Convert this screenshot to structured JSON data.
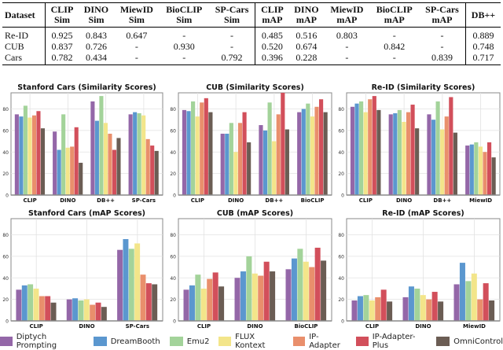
{
  "table": {
    "headers": [
      "Dataset",
      "CLIP Sim",
      "DINO Sim",
      "MiewID Sim",
      "BioCLIP Sim",
      "SP-Cars Sim",
      "CLIP mAP",
      "DINO mAP",
      "MiewID mAP",
      "BioCLIP mAP",
      "SP-Cars mAP",
      "DB++"
    ],
    "rows": [
      [
        "Re-ID",
        "0.925",
        "0.843",
        "0.647",
        "-",
        "-",
        "0.485",
        "0.516",
        "0.803",
        "-",
        "-",
        "0.889"
      ],
      [
        "CUB",
        "0.837",
        "0.726",
        "-",
        "0.930",
        "-",
        "0.520",
        "0.674",
        "-",
        "0.842",
        "-",
        "0.748"
      ],
      [
        "Cars",
        "0.782",
        "0.434",
        "-",
        "-",
        "0.792",
        "0.396",
        "0.228",
        "-",
        "-",
        "0.839",
        "0.717"
      ]
    ]
  },
  "legend": [
    {
      "name": "Diptych Prompting",
      "color": "#9467a8"
    },
    {
      "name": "DreamBooth",
      "color": "#5b97cf"
    },
    {
      "name": "Emu2",
      "color": "#a3d39a"
    },
    {
      "name": "FLUX Kontext",
      "color": "#f3e58a"
    },
    {
      "name": "IP-Adapter",
      "color": "#e98f6c"
    },
    {
      "name": "IP-Adapter-Plus",
      "color": "#d24f5b"
    },
    {
      "name": "OmniControl",
      "color": "#6b5d54"
    }
  ],
  "chart_data": [
    {
      "type": "bar",
      "title": "Stanford Cars (Similarity Scores)",
      "categories": [
        "CLIP",
        "DINO",
        "DB++",
        "SP-Cars"
      ],
      "ylim": [
        0,
        95
      ],
      "yticks": [
        0,
        20,
        40,
        60,
        80
      ],
      "grid": true,
      "values": [
        [
          75,
          73,
          83,
          72,
          74,
          78,
          62
        ],
        [
          59,
          42,
          75,
          44,
          45,
          63,
          30
        ],
        [
          87,
          69,
          92,
          67,
          57,
          42,
          53
        ],
        [
          75,
          77,
          76,
          74,
          52,
          46,
          41
        ]
      ]
    },
    {
      "type": "bar",
      "title": "CUB (Similarity Scores)",
      "categories": [
        "CLIP",
        "DINO",
        "DB++",
        "BioCLIP"
      ],
      "ylim": [
        0,
        95
      ],
      "yticks": [
        0,
        20,
        40,
        60,
        80
      ],
      "grid": true,
      "values": [
        [
          79,
          78,
          87,
          73,
          86,
          90,
          77
        ],
        [
          57,
          57,
          67,
          40,
          67,
          77,
          49
        ],
        [
          65,
          60,
          86,
          50,
          75,
          95,
          61
        ],
        [
          77,
          80,
          85,
          73,
          82,
          89,
          77
        ]
      ]
    },
    {
      "type": "bar",
      "title": "Re-ID (Similarity Scores)",
      "categories": [
        "CLIP",
        "DINO",
        "DB++",
        "MiewID"
      ],
      "ylim": [
        0,
        95
      ],
      "yticks": [
        0,
        20,
        40,
        60,
        80
      ],
      "grid": true,
      "values": [
        [
          82,
          85,
          87,
          77,
          89,
          92,
          79
        ],
        [
          75,
          76,
          79,
          68,
          77,
          84,
          62
        ],
        [
          75,
          70,
          87,
          61,
          73,
          91,
          58
        ],
        [
          46,
          47,
          49,
          45,
          40,
          49,
          35
        ]
      ]
    },
    {
      "type": "bar",
      "title": "Stanford Cars (mAP Scores)",
      "categories": [
        "CLIP",
        "DINO",
        "SP-Cars"
      ],
      "ylim": [
        0,
        95
      ],
      "yticks": [
        0,
        20,
        40,
        60,
        80
      ],
      "grid": true,
      "values": [
        [
          29,
          33,
          34,
          30,
          23,
          23,
          17
        ],
        [
          20,
          21,
          19,
          20,
          15,
          17,
          13
        ],
        [
          66,
          76,
          67,
          72,
          43,
          35,
          34
        ]
      ]
    },
    {
      "type": "bar",
      "title": "CUB (mAP Scores)",
      "categories": [
        "CLIP",
        "DINO",
        "BioCLIP"
      ],
      "ylim": [
        0,
        95
      ],
      "yticks": [
        0,
        20,
        40,
        60,
        80
      ],
      "grid": true,
      "values": [
        [
          29,
          33,
          43,
          30,
          39,
          45,
          32
        ],
        [
          40,
          46,
          60,
          44,
          42,
          55,
          46
        ],
        [
          48,
          58,
          67,
          55,
          50,
          68,
          56
        ]
      ]
    },
    {
      "type": "bar",
      "title": "Re-ID (mAP Scores)",
      "categories": [
        "CLIP",
        "DINO",
        "MiewID"
      ],
      "ylim": [
        0,
        95
      ],
      "yticks": [
        0,
        20,
        40,
        60,
        80
      ],
      "grid": true,
      "values": [
        [
          19,
          23,
          24,
          19,
          22,
          29,
          18
        ],
        [
          22,
          32,
          30,
          24,
          20,
          27,
          18
        ],
        [
          34,
          54,
          37,
          44,
          20,
          35,
          19
        ]
      ]
    }
  ]
}
